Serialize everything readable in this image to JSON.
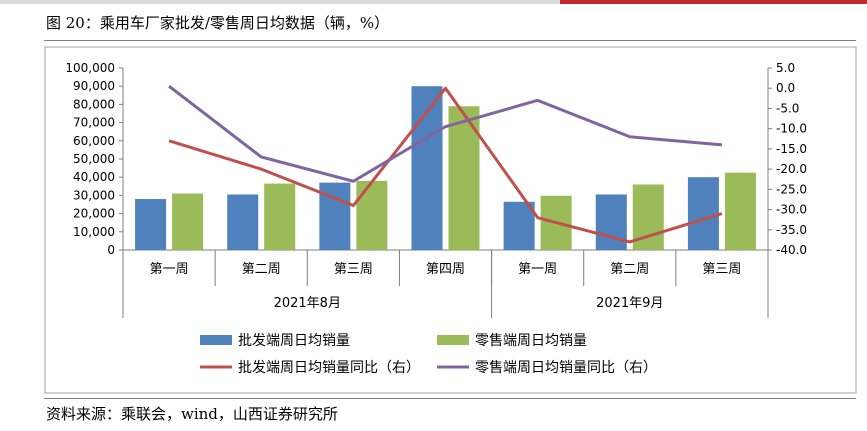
{
  "figure": {
    "title": "图 20：乘用车厂家批发/零售周日均数据（辆，%）",
    "source": "资料来源：乘联会，wind，山西证券研究所"
  },
  "colors": {
    "wholesale_bar": "#4f81bd",
    "retail_bar": "#9bbb59",
    "wholesale_line": "#c0504d",
    "retail_line": "#8064a2"
  },
  "chart_data": {
    "type": "bar",
    "categories": [
      "第一周",
      "第二周",
      "第三周",
      "第四周",
      "第一周",
      "第二周",
      "第三周"
    ],
    "groups": [
      {
        "label": "2021年8月",
        "span": 4
      },
      {
        "label": "2021年9月",
        "span": 3
      }
    ],
    "series": [
      {
        "name": "批发端周日均销量",
        "type": "bar",
        "axis": "left",
        "values": [
          28000,
          30500,
          37000,
          90000,
          26500,
          30500,
          40000
        ]
      },
      {
        "name": "零售端周日均销量",
        "type": "bar",
        "axis": "left",
        "values": [
          31000,
          36500,
          38000,
          79000,
          29800,
          36000,
          42500
        ]
      },
      {
        "name": "批发端周日均销量同比（右）",
        "type": "line",
        "axis": "right",
        "values": [
          -13.0,
          -20.0,
          -29.0,
          0.0,
          -32.0,
          -38.0,
          -31.0
        ]
      },
      {
        "name": "零售端周日均销量同比（右）",
        "type": "line",
        "axis": "right",
        "values": [
          0.5,
          -17.0,
          -23.0,
          -9.5,
          -3.0,
          -12.0,
          -14.0
        ]
      }
    ],
    "y_left": {
      "min": 0,
      "max": 100000,
      "step": 10000,
      "tick_labels": [
        "0",
        "10,000",
        "20,000",
        "30,000",
        "40,000",
        "50,000",
        "60,000",
        "70,000",
        "80,000",
        "90,000",
        "100,000"
      ]
    },
    "y_right": {
      "min": -40,
      "max": 5,
      "step": 5,
      "tick_labels": [
        "-40.0",
        "-35.0",
        "-30.0",
        "-25.0",
        "-20.0",
        "-15.0",
        "-10.0",
        "-5.0",
        "0.0",
        "5.0"
      ]
    },
    "grid": false,
    "legend": "bottom"
  }
}
